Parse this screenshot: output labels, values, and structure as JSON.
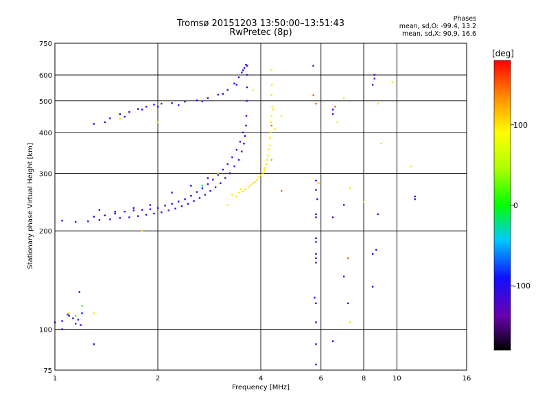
{
  "title_line1": "Tromsø 20151203 13:50:00–13:51:43",
  "title_line2": "RwPretec (8p)",
  "phases_panel": {
    "heading": "Phases",
    "line_o": "mean, sd,O: -99.4, 13.2",
    "line_x": "mean, sd,X:  90.9, 16.6"
  },
  "colorbar": {
    "label": "[deg]",
    "min": -180,
    "max": 180,
    "ticks": [
      100,
      0,
      -100
    ],
    "tick_labels": [
      "100",
      "0",
      "-100"
    ]
  },
  "chart_data": {
    "type": "scatter",
    "title": "Tromsø 20151203 13:50:00–13:51:43",
    "subtitle": "RwPretec (8p)",
    "xlabel": "Frequency [MHz]",
    "ylabel": "Stationary phase Virtual Height [km]",
    "x_scale": "log",
    "y_scale": "log",
    "xlim": [
      1,
      16
    ],
    "ylim": [
      75,
      750
    ],
    "x_ticks": [
      1,
      2,
      4,
      6,
      8,
      10,
      16
    ],
    "x_tick_labels": [
      "1",
      "2",
      "4",
      "6",
      "8",
      "10",
      "16"
    ],
    "y_ticks": [
      75,
      100,
      200,
      300,
      400,
      500,
      600,
      750
    ],
    "y_tick_labels": [
      "75",
      "100",
      "200",
      "300",
      "400",
      "500",
      "600",
      "750"
    ],
    "grid": true,
    "color_encodes": "phase [deg]",
    "series": [
      {
        "phase_deg": -100,
        "points": [
          [
            1.0,
            105
          ],
          [
            1.05,
            106
          ],
          [
            1.1,
            110
          ],
          [
            1.13,
            108
          ],
          [
            1.15,
            104
          ],
          [
            1.19,
            103
          ],
          [
            1.2,
            112
          ],
          [
            1.05,
            100
          ],
          [
            1.09,
            111
          ],
          [
            1.17,
            107
          ],
          [
            1.18,
            130
          ],
          [
            1.3,
            90
          ],
          [
            1.05,
            215
          ],
          [
            1.15,
            213
          ],
          [
            1.25,
            214
          ],
          [
            1.35,
            216
          ],
          [
            1.45,
            217
          ],
          [
            1.55,
            219
          ],
          [
            1.65,
            220
          ],
          [
            1.75,
            222
          ],
          [
            1.85,
            224
          ],
          [
            1.95,
            226
          ],
          [
            2.05,
            228
          ],
          [
            2.15,
            231
          ],
          [
            2.25,
            234
          ],
          [
            2.35,
            238
          ],
          [
            2.45,
            242
          ],
          [
            2.55,
            247
          ],
          [
            2.65,
            252
          ],
          [
            2.75,
            258
          ],
          [
            2.85,
            265
          ],
          [
            2.95,
            272
          ],
          [
            3.05,
            280
          ],
          [
            3.15,
            290
          ],
          [
            3.25,
            300
          ],
          [
            3.35,
            315
          ],
          [
            3.45,
            330
          ],
          [
            3.52,
            350
          ],
          [
            3.57,
            370
          ],
          [
            3.6,
            390
          ],
          [
            3.62,
            420
          ],
          [
            3.63,
            450
          ],
          [
            3.64,
            500
          ],
          [
            3.645,
            550
          ],
          [
            3.65,
            600
          ],
          [
            3.65,
            640
          ],
          [
            1.3,
            221
          ],
          [
            1.4,
            223
          ],
          [
            1.5,
            226
          ],
          [
            1.6,
            229
          ],
          [
            1.7,
            231
          ],
          [
            1.8,
            232
          ],
          [
            1.9,
            233
          ],
          [
            2.0,
            235
          ],
          [
            2.1,
            239
          ],
          [
            2.2,
            242
          ],
          [
            2.3,
            246
          ],
          [
            2.4,
            250
          ],
          [
            2.5,
            256
          ],
          [
            2.6,
            263
          ],
          [
            2.7,
            270
          ],
          [
            2.8,
            278
          ],
          [
            2.9,
            287
          ],
          [
            3.0,
            297
          ],
          [
            3.1,
            308
          ],
          [
            3.2,
            320
          ],
          [
            3.3,
            336
          ],
          [
            3.4,
            354
          ],
          [
            3.48,
            375
          ],
          [
            3.55,
            400
          ],
          [
            1.35,
            232
          ],
          [
            1.5,
            229
          ],
          [
            1.7,
            235
          ],
          [
            1.9,
            240
          ],
          [
            2.2,
            262
          ],
          [
            2.5,
            275
          ],
          [
            2.8,
            290
          ],
          [
            1.3,
            425
          ],
          [
            1.45,
            442
          ],
          [
            1.55,
            455
          ],
          [
            1.65,
            462
          ],
          [
            1.75,
            472
          ],
          [
            1.85,
            480
          ],
          [
            1.95,
            487
          ],
          [
            2.05,
            490
          ],
          [
            2.2,
            492
          ],
          [
            2.4,
            497
          ],
          [
            2.6,
            502
          ],
          [
            2.8,
            510
          ],
          [
            3.0,
            522
          ],
          [
            3.2,
            540
          ],
          [
            3.35,
            565
          ],
          [
            3.45,
            590
          ],
          [
            3.52,
            610
          ],
          [
            3.58,
            630
          ],
          [
            3.62,
            645
          ],
          [
            1.4,
            430
          ],
          [
            1.6,
            447
          ],
          [
            1.8,
            470
          ],
          [
            2.0,
            480
          ],
          [
            2.3,
            485
          ],
          [
            2.7,
            498
          ],
          [
            3.1,
            525
          ],
          [
            3.4,
            560
          ],
          [
            3.55,
            620
          ],
          [
            5.7,
            640
          ],
          [
            6.5,
            455
          ],
          [
            6.5,
            470
          ],
          [
            8.6,
            600
          ],
          [
            8.6,
            585
          ],
          [
            8.5,
            560
          ],
          [
            5.8,
            285
          ],
          [
            5.8,
            267
          ],
          [
            5.9,
            280
          ],
          [
            5.85,
            250
          ],
          [
            5.8,
            225
          ],
          [
            5.8,
            220
          ],
          [
            6.5,
            220
          ],
          [
            7.0,
            240
          ],
          [
            8.8,
            225
          ],
          [
            11.3,
            255
          ],
          [
            11.3,
            250
          ],
          [
            5.8,
            190
          ],
          [
            5.8,
            185
          ],
          [
            5.8,
            170
          ],
          [
            5.8,
            165
          ],
          [
            5.8,
            160
          ],
          [
            5.75,
            125
          ],
          [
            5.8,
            120
          ],
          [
            5.8,
            105
          ],
          [
            5.8,
            90
          ],
          [
            5.8,
            78
          ],
          [
            6.5,
            92
          ],
          [
            7.2,
            120
          ],
          [
            7.0,
            145
          ],
          [
            8.7,
            175
          ],
          [
            8.5,
            170
          ],
          [
            8.5,
            135
          ]
        ]
      },
      {
        "phase_deg": 100,
        "points": [
          [
            3.3,
            258
          ],
          [
            3.45,
            262
          ],
          [
            3.6,
            268
          ],
          [
            3.75,
            276
          ],
          [
            3.9,
            286
          ],
          [
            4.0,
            296
          ],
          [
            4.1,
            305
          ],
          [
            4.15,
            320
          ],
          [
            4.2,
            340
          ],
          [
            4.25,
            365
          ],
          [
            4.28,
            400
          ],
          [
            4.3,
            450
          ],
          [
            4.3,
            520
          ],
          [
            4.3,
            620
          ],
          [
            3.4,
            255
          ],
          [
            3.55,
            264
          ],
          [
            3.7,
            272
          ],
          [
            3.85,
            282
          ],
          [
            3.95,
            292
          ],
          [
            4.05,
            300
          ],
          [
            4.12,
            312
          ],
          [
            4.18,
            330
          ],
          [
            4.22,
            355
          ],
          [
            4.26,
            385
          ],
          [
            4.29,
            430
          ],
          [
            4.32,
            480
          ],
          [
            4.31,
            560
          ],
          [
            3.5,
            268
          ],
          [
            3.8,
            280
          ],
          [
            4.1,
            310
          ],
          [
            4.35,
            470
          ],
          [
            4.4,
            410
          ],
          [
            3.2,
            240
          ],
          [
            3.8,
            540
          ],
          [
            4.6,
            450
          ],
          [
            6.7,
            430
          ],
          [
            7.0,
            510
          ],
          [
            7.3,
            270
          ],
          [
            8.8,
            490
          ],
          [
            9.0,
            370
          ],
          [
            9.7,
            570
          ],
          [
            8.0,
            245
          ],
          [
            11.0,
            315
          ],
          [
            7.3,
            105
          ],
          [
            5.9,
            280
          ],
          [
            2.0,
            430
          ],
          [
            1.3,
            112
          ],
          [
            1.1,
            112
          ],
          [
            1.55,
            440
          ],
          [
            1.8,
            200
          ],
          [
            3.0,
            300
          ]
        ]
      },
      {
        "phase_deg": 150,
        "points": [
          [
            5.7,
            520
          ],
          [
            5.8,
            490
          ],
          [
            4.6,
            265
          ],
          [
            4.3,
            420
          ],
          [
            6.6,
            480
          ],
          [
            7.2,
            165
          ]
        ]
      },
      {
        "phase_deg": 20,
        "points": [
          [
            1.2,
            118
          ],
          [
            1.15,
            110
          ],
          [
            4.3,
            330
          ]
        ]
      },
      {
        "phase_deg": -20,
        "points": [
          [
            2.7,
            275
          ]
        ]
      }
    ]
  }
}
